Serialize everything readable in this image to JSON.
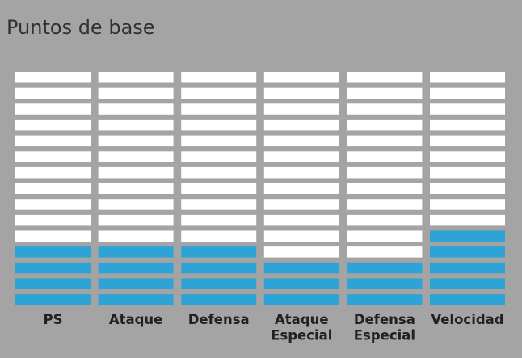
{
  "title": "Puntos de base",
  "chart_data": {
    "type": "bar",
    "title": "Puntos de base",
    "categories": [
      [
        "PS"
      ],
      [
        "Ataque"
      ],
      [
        "Defensa"
      ],
      [
        "Ataque",
        "Especial"
      ],
      [
        "Defensa",
        "Especial"
      ],
      [
        "Velocidad"
      ]
    ],
    "values": [
      4,
      4,
      4,
      3,
      3,
      5
    ],
    "max_segments": 15,
    "colors": {
      "filled": "#2ea3d6",
      "empty": "#ffffff",
      "background": "#a4a4a4",
      "text": "#212121"
    }
  }
}
